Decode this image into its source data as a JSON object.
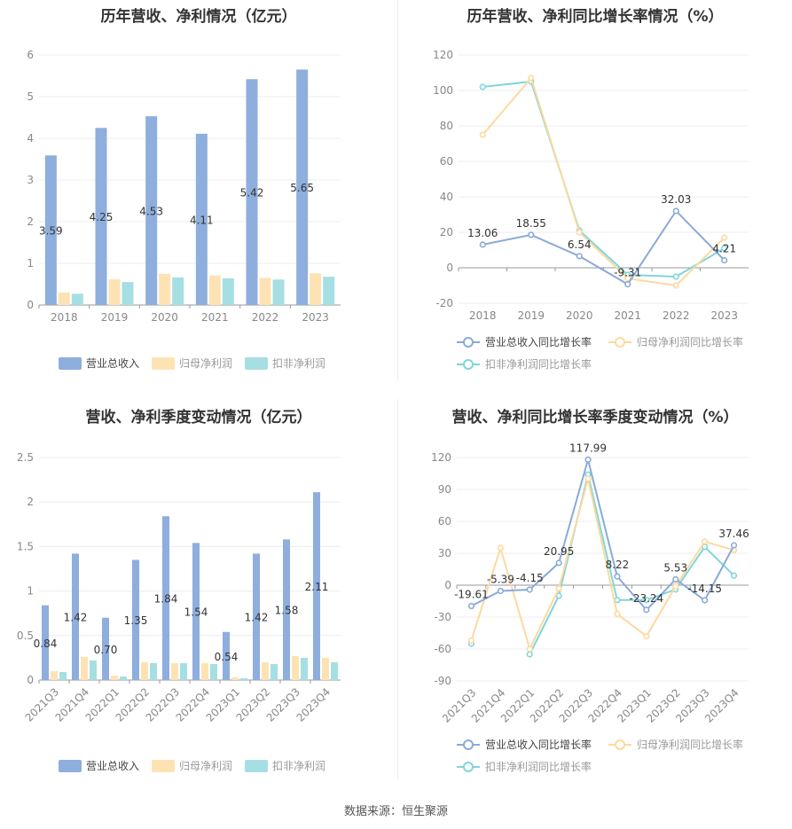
{
  "source_text": "数据来源：恒生聚源",
  "colors": {
    "revenue": "#8eaedd",
    "net_profit": "#fde3b4",
    "deducted_profit": "#a5dfe3",
    "revenue_line": "#8aaad8",
    "net_profit_line": "#fdd9a0",
    "deducted_profit_line": "#7fd6da",
    "axis": "#999999",
    "grid": "#ececec",
    "label": "#333333"
  },
  "chart_data": [
    {
      "id": "annual_bar",
      "type": "bar",
      "title": "历年营收、净利情况（亿元）",
      "categories": [
        "2018",
        "2019",
        "2020",
        "2021",
        "2022",
        "2023"
      ],
      "ylim": [
        0,
        6
      ],
      "yticks": [
        "0",
        "1",
        "2",
        "3",
        "4",
        "5",
        "6"
      ],
      "grid": true,
      "legend_position": "bottom",
      "series": [
        {
          "name": "营业总收入",
          "values": [
            3.59,
            4.25,
            4.53,
            4.11,
            5.42,
            5.65
          ],
          "labels": [
            "3.59",
            "4.25",
            "4.53",
            "4.11",
            "5.42",
            "5.65"
          ]
        },
        {
          "name": "归母净利润",
          "values": [
            0.3,
            0.62,
            0.75,
            0.71,
            0.65,
            0.76
          ]
        },
        {
          "name": "扣非净利润",
          "values": [
            0.27,
            0.55,
            0.66,
            0.64,
            0.61,
            0.68
          ]
        }
      ]
    },
    {
      "id": "annual_growth",
      "type": "line",
      "title": "历年营收、净利同比增长率情况（%）",
      "categories": [
        "2018",
        "2019",
        "2020",
        "2021",
        "2022",
        "2023"
      ],
      "ylim": [
        -20,
        120
      ],
      "yticks": [
        "-20",
        "0",
        "20",
        "40",
        "60",
        "80",
        "100",
        "120"
      ],
      "grid": true,
      "legend_position": "bottom",
      "series": [
        {
          "name": "营业总收入同比增长率",
          "values": [
            13.06,
            18.55,
            6.54,
            -9.31,
            32.03,
            4.21
          ],
          "labels": [
            "13.06",
            "18.55",
            "6.54",
            "-9.31",
            "32.03",
            "4.21"
          ]
        },
        {
          "name": "归母净利润同比增长率",
          "values": [
            75,
            107,
            20,
            -6,
            -10,
            17
          ]
        },
        {
          "name": "扣非净利润同比增长率",
          "values": [
            102,
            105,
            21,
            -4,
            -5,
            11
          ]
        }
      ]
    },
    {
      "id": "quarterly_bar",
      "type": "bar",
      "title": "营收、净利季度变动情况（亿元）",
      "categories": [
        "2021Q3",
        "2021Q4",
        "2022Q1",
        "2022Q2",
        "2022Q3",
        "2022Q4",
        "2023Q1",
        "2023Q2",
        "2023Q3",
        "2023Q4"
      ],
      "ylim": [
        0,
        2.5
      ],
      "yticks": [
        "0",
        "0.5",
        "1",
        "1.5",
        "2",
        "2.5"
      ],
      "grid": true,
      "legend_position": "bottom",
      "series": [
        {
          "name": "营业总收入",
          "values": [
            0.84,
            1.42,
            0.7,
            1.35,
            1.84,
            1.54,
            0.54,
            1.42,
            1.58,
            2.11
          ],
          "labels": [
            "0.84",
            "1.42",
            "0.70",
            "1.35",
            "1.84",
            "1.54",
            "0.54",
            "1.42",
            "1.58",
            "2.11"
          ]
        },
        {
          "name": "归母净利润",
          "values": [
            0.1,
            0.26,
            0.05,
            0.2,
            0.19,
            0.19,
            0.03,
            0.2,
            0.27,
            0.25
          ]
        },
        {
          "name": "扣非净利润",
          "values": [
            0.09,
            0.22,
            0.04,
            0.19,
            0.19,
            0.18,
            0.02,
            0.18,
            0.25,
            0.2
          ]
        }
      ]
    },
    {
      "id": "quarterly_growth",
      "type": "line",
      "title": "营收、净利同比增长率季度变动情况（%）",
      "categories": [
        "2021Q3",
        "2021Q4",
        "2022Q1",
        "2022Q2",
        "2022Q3",
        "2022Q4",
        "2023Q1",
        "2023Q2",
        "2023Q3",
        "2023Q4"
      ],
      "ylim": [
        -90,
        120
      ],
      "yticks": [
        "-90",
        "-60",
        "-30",
        "0",
        "30",
        "60",
        "90",
        "120"
      ],
      "grid": true,
      "legend_position": "bottom",
      "series": [
        {
          "name": "营业总收入同比增长率",
          "values": [
            -19.61,
            -5.39,
            -4.15,
            20.95,
            117.99,
            8.22,
            -23.24,
            5.53,
            -14.15,
            37.46
          ],
          "labels": [
            "-19.61",
            "-5.39",
            "-4.15",
            "20.95",
            "117.99",
            "8.22",
            "-23.24",
            "5.53",
            "-14.15",
            "37.46"
          ]
        },
        {
          "name": "归母净利润同比增长率",
          "values": [
            -52,
            35,
            -60,
            -3,
            100,
            -27,
            -48,
            -1,
            41,
            33
          ]
        },
        {
          "name": "扣非净利润同比增长率",
          "values": [
            -55,
            null,
            -65,
            -10,
            104,
            -14,
            -14,
            -4,
            36,
            9
          ]
        }
      ]
    }
  ]
}
